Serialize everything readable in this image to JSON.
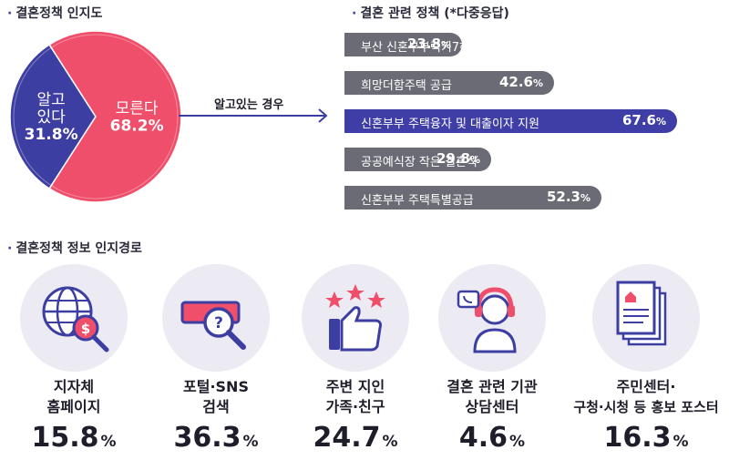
{
  "titles": {
    "awareness": "결혼정책 인지도",
    "policies": "결혼 관련 정책 (*다중응답)",
    "channels": "결혼정책 정보 인지경로"
  },
  "arrow_label": "알고있는 경우",
  "chart_data": [
    {
      "type": "pie",
      "title": "결혼정책 인지도",
      "slices": [
        {
          "name": "알고 있다",
          "name_lines": [
            "알고",
            "있다"
          ],
          "value": 31.8,
          "label": "31.8%",
          "color": "#3d3ea2"
        },
        {
          "name": "모른다",
          "name_lines": [
            "모른다"
          ],
          "value": 68.2,
          "label": "68.2%",
          "color": "#ef4f6a"
        }
      ]
    },
    {
      "type": "bar",
      "orientation": "horizontal",
      "title": "결혼 관련 정책 (*다중응답)",
      "categories": [
        "부산 신혼부부럭키7하우스",
        "희망더함주택 공급",
        "신혼부부 주택융자 및 대출이자 지원",
        "공공예식장 작은 결혼식",
        "신혼부부 주택특별공급"
      ],
      "values": [
        23.8,
        42.6,
        67.6,
        29.8,
        52.3
      ],
      "value_labels": [
        "23.8",
        "42.6",
        "67.6",
        "29.8",
        "52.3"
      ],
      "highlight_index": 2,
      "colors": {
        "default": "#6b6b76",
        "highlight": "#3f3ea6"
      }
    },
    {
      "type": "table",
      "title": "결혼정책 정보 인지경로",
      "items": [
        {
          "icon": "globe-search-icon",
          "label_lines": [
            "지자체",
            "홈페이지"
          ],
          "value": 15.8,
          "value_label": "15.8"
        },
        {
          "icon": "search-bar-magnifier-icon",
          "label_lines": [
            "포털·SNS",
            "검색"
          ],
          "value": 36.3,
          "value_label": "36.3"
        },
        {
          "icon": "thumbs-up-stars-icon",
          "label_lines": [
            "주변 지인",
            "가족·친구"
          ],
          "value": 24.7,
          "value_label": "24.7"
        },
        {
          "icon": "headset-agent-icon",
          "label_lines": [
            "결혼 관련 기관",
            "상담센터"
          ],
          "value": 4.6,
          "value_label": "4.6"
        },
        {
          "icon": "document-poster-icon",
          "label_lines": [
            "주민센터·",
            "구청·시청 등 홍보 포스터"
          ],
          "value": 16.3,
          "value_label": "16.3"
        }
      ],
      "unit": "%"
    }
  ]
}
